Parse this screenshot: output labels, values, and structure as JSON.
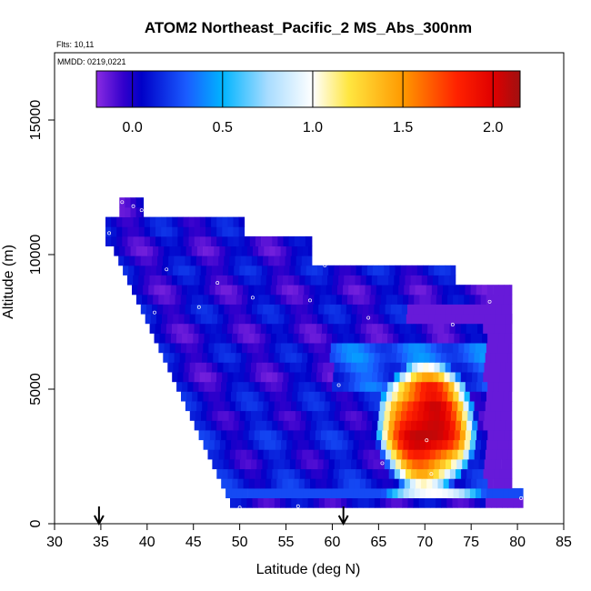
{
  "chart_data": {
    "type": "heatmap",
    "title": "ATOM2 Northeast_Pacific_2 MS_Abs_300nm",
    "flights_note": "Flts: 10,11",
    "date_note": "MMDD: 0219,0221",
    "xlabel": "Latitude (deg N)",
    "ylabel": "Altitude (m)",
    "xlim": [
      30,
      85
    ],
    "ylim": [
      0,
      17500
    ],
    "x_ticks": [
      30,
      35,
      40,
      45,
      50,
      55,
      60,
      65,
      70,
      75,
      80,
      85
    ],
    "y_ticks": [
      0,
      5000,
      10000,
      15000
    ],
    "colorbar": {
      "range": [
        -0.2,
        2.15
      ],
      "ticks": [
        0.0,
        0.5,
        1.0,
        1.5,
        2.0
      ],
      "tick_labels": [
        "0.0",
        "0.5",
        "1.0",
        "1.5",
        "2.0"
      ],
      "stops": [
        {
          "v": -0.2,
          "color": "#8a2be2"
        },
        {
          "v": -0.05,
          "color": "#3300cc"
        },
        {
          "v": 0.05,
          "color": "#0000c8"
        },
        {
          "v": 0.3,
          "color": "#1a5cff"
        },
        {
          "v": 0.5,
          "color": "#00b4ff"
        },
        {
          "v": 0.75,
          "color": "#a8dcff"
        },
        {
          "v": 1.0,
          "color": "#ffffff"
        },
        {
          "v": 1.2,
          "color": "#ffe640"
        },
        {
          "v": 1.5,
          "color": "#ff9900"
        },
        {
          "v": 1.8,
          "color": "#ff2200"
        },
        {
          "v": 2.0,
          "color": "#e00000"
        },
        {
          "v": 2.15,
          "color": "#a01010"
        }
      ]
    },
    "flight_markers_lat": [
      34.8,
      61.2
    ],
    "grid": false,
    "legend": "top colorbar"
  }
}
